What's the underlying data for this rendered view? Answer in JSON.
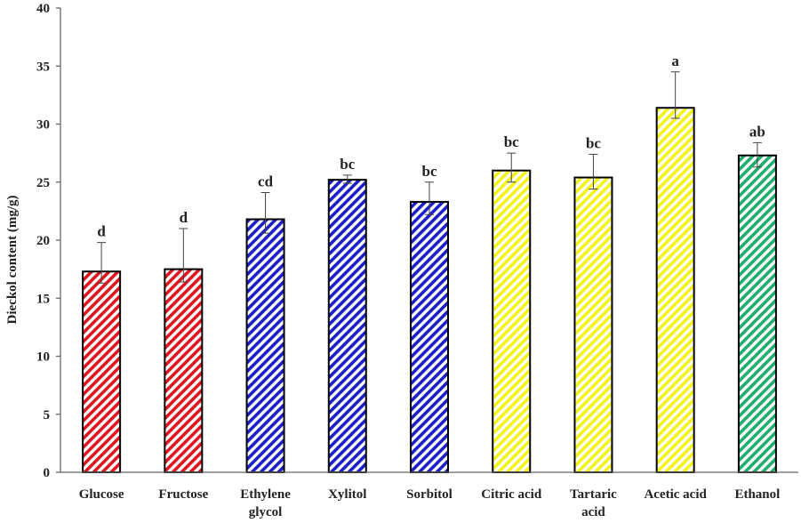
{
  "chart_data": {
    "type": "bar",
    "title": "",
    "xlabel": "",
    "ylabel": "Dieckol content (mg/g)",
    "ylim": [
      0,
      40
    ],
    "yticks": [
      0,
      5,
      10,
      15,
      20,
      25,
      30,
      35,
      40
    ],
    "grid": false,
    "legend": "none",
    "categories": [
      [
        "Glucose"
      ],
      [
        "Fructose"
      ],
      [
        "Ethylene",
        "glycol"
      ],
      [
        "Xylitol"
      ],
      [
        "Sorbitol"
      ],
      [
        "Citric acid"
      ],
      [
        "Tartaric",
        "acid"
      ],
      [
        "Acetic acid"
      ],
      [
        "Ethanol"
      ]
    ],
    "values": [
      17.3,
      17.5,
      21.8,
      25.2,
      23.3,
      26.0,
      25.4,
      31.4,
      27.3
    ],
    "error_upper": [
      19.8,
      21.0,
      24.1,
      25.6,
      25.0,
      27.5,
      27.4,
      34.5,
      28.4
    ],
    "error_lower": [
      16.3,
      16.4,
      20.6,
      24.9,
      22.2,
      25.0,
      24.4,
      30.5,
      26.3
    ],
    "significance_letters": [
      "d",
      "d",
      "cd",
      "bc",
      "bc",
      "bc",
      "bc",
      "a",
      "ab"
    ],
    "bar_colors": [
      "#e0161e",
      "#e0161e",
      "#1c1ec8",
      "#1c1ec8",
      "#1c1ec8",
      "#f4f41a",
      "#f4f41a",
      "#f4f41a",
      "#1fae6e"
    ]
  }
}
